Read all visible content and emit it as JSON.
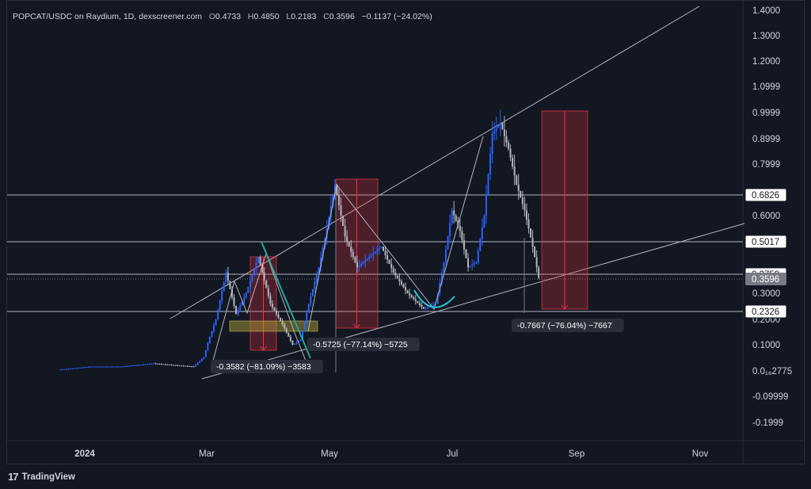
{
  "header": {
    "symbol": "POPCAT/USDC on Raydium, 1D, dexscreener.com",
    "o_label": "O",
    "o_value": "0.4733",
    "h_label": "H",
    "h_value": "0.4850",
    "l_label": "L",
    "l_value": "0.2183",
    "c_label": "C",
    "c_value": "0.3596",
    "change": "−0.1137 (−24.02%)"
  },
  "footer": {
    "logo": "17",
    "brand": "TradingView"
  },
  "chart_data": {
    "type": "candlestick",
    "title": "POPCAT/USDC on Raydium, 1D",
    "x_ticks": [
      "2024",
      "Mar",
      "May",
      "Jul",
      "Sep",
      "Nov"
    ],
    "y_ticks": [
      "1.4000",
      "1.3000",
      "1.2000",
      "1.0999",
      "0.9999",
      "0.8999",
      "0.7999",
      "0.6000",
      "0.3000",
      "0.2000",
      "0.1000",
      "0.0162775",
      "-0.09999",
      "-0.1999"
    ],
    "y_tick_display": [
      "1.4000",
      "1.3000",
      "1.2000",
      "1.0999",
      "0.9999",
      "0.8999",
      "0.7999",
      "0.6000",
      "0.3000",
      "0.2000",
      "0.1000",
      "0.0₁₆2775",
      "-0.09999",
      "-0.1999"
    ],
    "horizontal_levels": [
      {
        "label": "0.6826",
        "value": 0.6826
      },
      {
        "label": "0.5017",
        "value": 0.5017
      },
      {
        "label": "0.3759",
        "value": 0.3759
      },
      {
        "label": "0.3596",
        "value": 0.3596,
        "current": true
      },
      {
        "label": "0.2326",
        "value": 0.2326
      }
    ],
    "measurements": [
      {
        "label": "-0.3582 (−81.09%) −3583"
      },
      {
        "label": "-0.5725 (−77.14%) −5725"
      },
      {
        "label": "-0.7667 (−76.04%) −7667"
      }
    ],
    "ohlc_last": {
      "open": 0.4733,
      "high": 0.485,
      "low": 0.2183,
      "close": 0.3596
    },
    "price_path": [
      [
        "2023-12-20",
        0.02
      ],
      [
        "2024-01-05",
        0.03
      ],
      [
        "2024-01-20",
        0.03
      ],
      [
        "2024-02-05",
        0.04
      ],
      [
        "2024-02-25",
        0.03
      ],
      [
        "2024-03-01",
        0.06
      ],
      [
        "2024-03-07",
        0.2
      ],
      [
        "2024-03-12",
        0.38
      ],
      [
        "2024-03-17",
        0.22
      ],
      [
        "2024-03-22",
        0.3
      ],
      [
        "2024-03-28",
        0.44
      ],
      [
        "2024-04-03",
        0.26
      ],
      [
        "2024-04-09",
        0.18
      ],
      [
        "2024-04-14",
        0.1
      ],
      [
        "2024-04-18",
        0.12
      ],
      [
        "2024-04-22",
        0.26
      ],
      [
        "2024-04-27",
        0.4
      ],
      [
        "2024-05-01",
        0.55
      ],
      [
        "2024-05-05",
        0.72
      ],
      [
        "2024-05-10",
        0.52
      ],
      [
        "2024-05-16",
        0.4
      ],
      [
        "2024-05-22",
        0.44
      ],
      [
        "2024-05-28",
        0.48
      ],
      [
        "2024-06-03",
        0.38
      ],
      [
        "2024-06-10",
        0.3
      ],
      [
        "2024-06-18",
        0.24
      ],
      [
        "2024-06-24",
        0.26
      ],
      [
        "2024-06-28",
        0.42
      ],
      [
        "2024-07-02",
        0.62
      ],
      [
        "2024-07-06",
        0.54
      ],
      [
        "2024-07-10",
        0.4
      ],
      [
        "2024-07-14",
        0.42
      ],
      [
        "2024-07-18",
        0.6
      ],
      [
        "2024-07-22",
        0.92
      ],
      [
        "2024-07-26",
        0.96
      ],
      [
        "2024-07-30",
        0.86
      ],
      [
        "2024-08-03",
        0.72
      ],
      [
        "2024-08-07",
        0.62
      ],
      [
        "2024-08-11",
        0.48
      ],
      [
        "2024-08-14",
        0.36
      ]
    ]
  }
}
